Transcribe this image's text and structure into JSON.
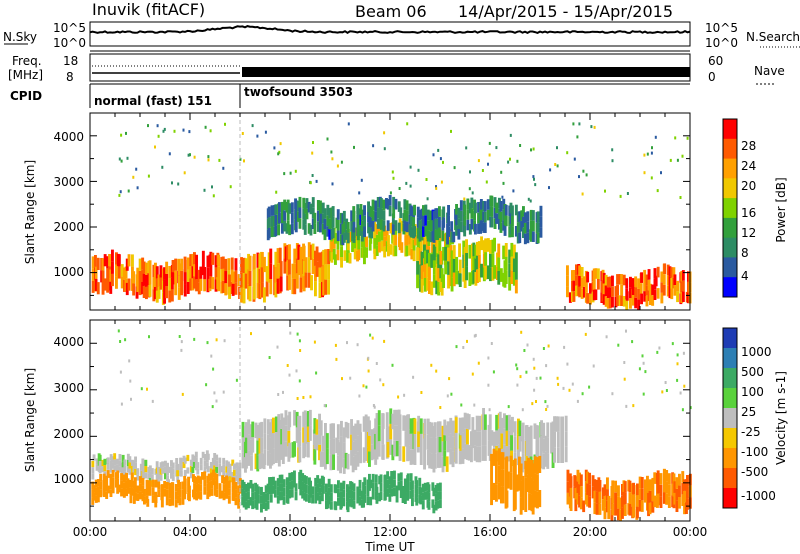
{
  "header": {
    "station": "Inuvik (fitACF)",
    "beam": "Beam 06",
    "date_range": "14/Apr/2015 - 15/Apr/2015"
  },
  "sky_panel": {
    "left_label": "N.Sky",
    "left_ticks": [
      "10^5",
      "10^0"
    ],
    "right_ticks": [
      "10^5",
      "10^0"
    ],
    "right_label": "N.Search"
  },
  "freq_panel": {
    "left_label_1": "Freq.",
    "left_label_2": "[MHz]",
    "left_ticks": [
      "18",
      "8"
    ],
    "right_ticks": [
      "60",
      "0"
    ],
    "right_label": "Nave"
  },
  "cpid_panel": {
    "label": "CPID",
    "modes": [
      {
        "name": "normal (fast) 151",
        "start": "00:00",
        "end": "06:00"
      },
      {
        "name": "twofsound 3503",
        "start": "06:00",
        "end": "00:00"
      }
    ]
  },
  "axes": {
    "x_ticks": [
      "00:00",
      "04:00",
      "08:00",
      "12:00",
      "16:00",
      "20:00",
      "00:00"
    ],
    "x_label": "Time UT",
    "y_label": "Slant Range [km]",
    "y_ticks": [
      "1000",
      "2000",
      "3000",
      "4000"
    ]
  },
  "power_colorbar": {
    "label": "Power [dB]",
    "ticks": [
      "28",
      "24",
      "20",
      "16",
      "12",
      "8",
      "4"
    ],
    "colors": [
      "#ff0000",
      "#ff5a00",
      "#ffa000",
      "#f0c800",
      "#7fd200",
      "#32a03c",
      "#2d8c64",
      "#2a5aa0",
      "#0000ff"
    ]
  },
  "velocity_colorbar": {
    "label": "Velocity [m s-1]",
    "ticks": [
      "1000",
      "500",
      "100",
      "25",
      "-25",
      "-100",
      "-500",
      "-1000"
    ],
    "colors": [
      "#1e3cb4",
      "#2d7fb4",
      "#3caa64",
      "#5ad23c",
      "#bebebe",
      "#f5c800",
      "#ff9600",
      "#ff5a00",
      "#ff0000"
    ]
  },
  "chart_data": [
    {
      "type": "heatmap",
      "title": "",
      "xlabel": "Time UT",
      "ylabel": "Slant Range [km]",
      "xlim": [
        0,
        24
      ],
      "ylim": [
        180,
        4500
      ],
      "quantity": "Power [dB]",
      "bands": [
        {
          "start": 0,
          "end": 6,
          "range_low": 500,
          "range_high": 1300,
          "value": 26
        },
        {
          "start": 6,
          "end": 9.5,
          "range_low": 500,
          "range_high": 1500,
          "value": 24
        },
        {
          "start": 9.5,
          "end": 14.5,
          "range_low": 1300,
          "range_high": 2000,
          "value": 20
        },
        {
          "start": 13,
          "end": 17,
          "range_low": 700,
          "range_high": 1600,
          "value": 18
        },
        {
          "start": 19,
          "end": 24,
          "range_low": 300,
          "range_high": 1000,
          "value": 26
        },
        {
          "start": 7,
          "end": 18,
          "range_low": 1800,
          "range_high": 2500,
          "value": 10
        }
      ]
    },
    {
      "type": "heatmap",
      "title": "",
      "xlabel": "Time UT",
      "ylabel": "Slant Range [km]",
      "xlim": [
        0,
        24
      ],
      "ylim": [
        180,
        4500
      ],
      "quantity": "Velocity [m s-1]",
      "bands": [
        {
          "start": 0,
          "end": 6,
          "range_low": 1100,
          "range_high": 1500,
          "value": 0
        },
        {
          "start": 0,
          "end": 6,
          "range_low": 600,
          "range_high": 1100,
          "value": -150
        },
        {
          "start": 6,
          "end": 14,
          "range_low": 550,
          "range_high": 1100,
          "value": 150
        },
        {
          "start": 6,
          "end": 19,
          "range_low": 1400,
          "range_high": 2400,
          "value": 0
        },
        {
          "start": 16,
          "end": 18,
          "range_low": 500,
          "range_high": 1600,
          "value": -200
        },
        {
          "start": 19,
          "end": 24,
          "range_low": 350,
          "range_high": 1100,
          "value": -300
        }
      ]
    }
  ]
}
